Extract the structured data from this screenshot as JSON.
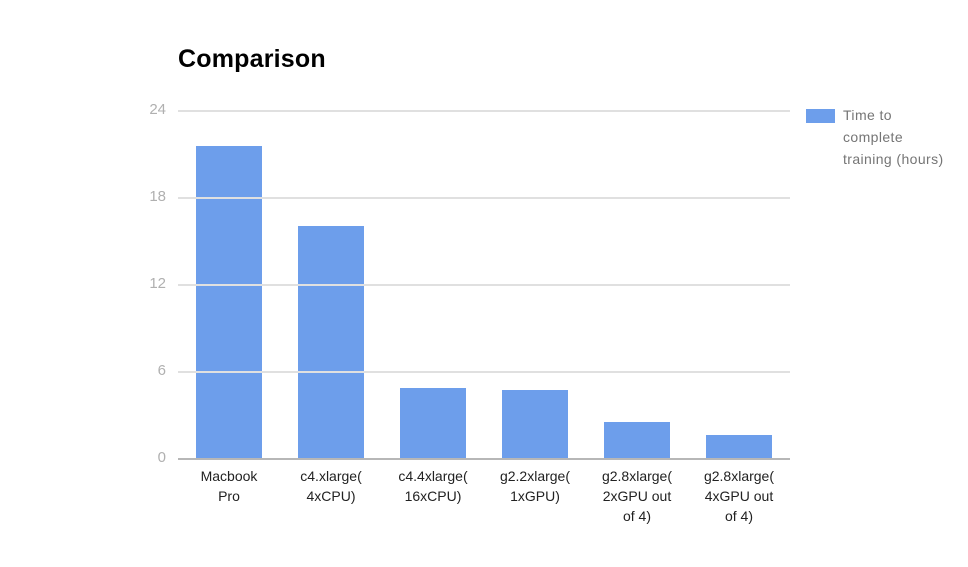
{
  "chart_data": {
    "type": "bar",
    "title": "Comparison",
    "categories": [
      "Macbook Pro",
      "c4.xlarge( 4xCPU)",
      "c4.4xlarge( 16xCPU)",
      "g2.2xlarge( 1xGPU)",
      "g2.8xlarge( 2xGPU out of 4)",
      "g2.8xlarge( 4xGPU out of 4)"
    ],
    "values": [
      21.5,
      16,
      4.8,
      4.7,
      2.5,
      1.6
    ],
    "series": [
      {
        "name": "Time to complete training (hours)",
        "values": [
          21.5,
          16,
          4.8,
          4.7,
          2.5,
          1.6
        ]
      }
    ],
    "legend": {
      "position": "right",
      "label": "Time to complete training (hours)"
    },
    "xlabel": "",
    "ylabel": "",
    "ylim": [
      0,
      24
    ],
    "yticks": [
      24,
      18,
      12,
      6,
      0
    ],
    "grid": true,
    "colors": {
      "bar": "#6d9eeb",
      "gridline": "#e0e0e0",
      "baseline": "#b7b7b7",
      "ytick_label": "#b0b0b0",
      "xtick_label": "#222222",
      "legend_text": "#757575",
      "title": "#000000"
    }
  }
}
